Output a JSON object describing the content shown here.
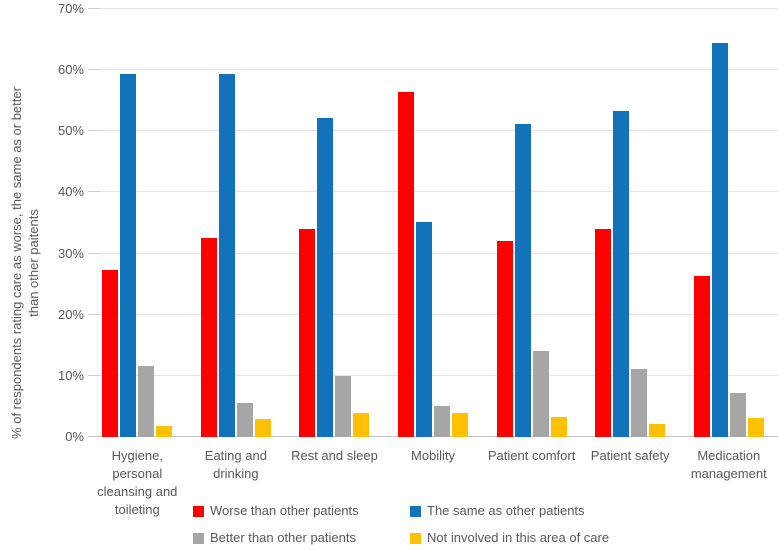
{
  "chart_data": {
    "type": "bar",
    "title": "",
    "xlabel": "",
    "ylabel": "% of respondents rating care as worse, the same as or better than other paitents",
    "ylabel_lines": [
      "% of respondents rating care as worse, the same as or better",
      "than other paitents"
    ],
    "ylim": [
      0,
      70
    ],
    "ytick_step": 10,
    "yticks": [
      "0%",
      "10%",
      "20%",
      "30%",
      "40%",
      "50%",
      "60%",
      "70%"
    ],
    "grid": true,
    "legend_position": "bottom",
    "categories": [
      "Hygiene, personal cleansing and toileting",
      "Eating and drinking",
      "Rest and sleep",
      "Mobility",
      "Patient comfort",
      "Patient safety",
      "Medication management"
    ],
    "series": [
      {
        "name": "Worse than other patients",
        "color": "#fe0000",
        "values": [
          27.4,
          32.6,
          34.0,
          56.5,
          32.1,
          34.1,
          26.3
        ]
      },
      {
        "name": "The same as other patients",
        "color": "#1273ba",
        "values": [
          59.4,
          59.3,
          52.2,
          35.2,
          51.2,
          53.4,
          64.4
        ]
      },
      {
        "name": "Better than other patients",
        "color": "#a6a6a6",
        "values": [
          11.7,
          5.6,
          10.0,
          5.0,
          14.0,
          11.1,
          7.2
        ]
      },
      {
        "name": "Not involved in this area of care",
        "color": "#fec000",
        "values": [
          1.8,
          2.9,
          3.9,
          4.0,
          3.2,
          2.1,
          3.1
        ]
      }
    ],
    "colors": {
      "text": "#595959",
      "gridline": "#e2e6ec",
      "axis_line": "#c3c3c3"
    }
  }
}
